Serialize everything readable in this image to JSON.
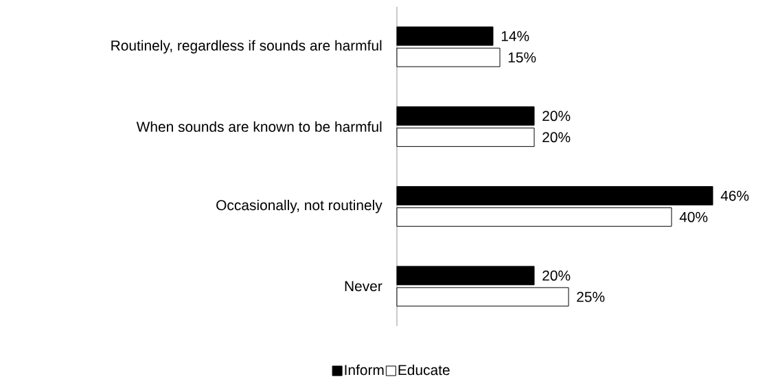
{
  "chart_data": {
    "type": "bar",
    "orientation": "horizontal",
    "categories": [
      "Routinely, regardless if sounds are harmful",
      "When sounds are known to be harmful",
      "Occasionally, not routinely",
      "Never"
    ],
    "series": [
      {
        "name": "Inform",
        "color": "#000000",
        "values": [
          14,
          20,
          46,
          20
        ],
        "value_labels": [
          "14%",
          "20%",
          "46%",
          "20%"
        ]
      },
      {
        "name": "Educate",
        "color": "#ffffff",
        "values": [
          15,
          20,
          40,
          25
        ],
        "value_labels": [
          "15%",
          "20%",
          "40%",
          "25%"
        ]
      }
    ],
    "tick_labels": "y",
    "legend": "bottom",
    "grid": false
  }
}
